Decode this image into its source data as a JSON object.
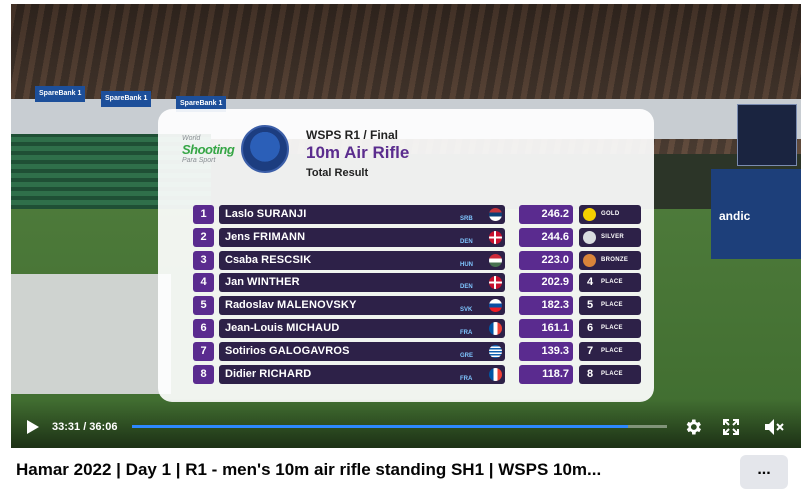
{
  "video": {
    "time_display": "33:31 / 36:06",
    "progress": 0.928,
    "accent_color": "#2d88ff"
  },
  "overlay": {
    "logo_line1": "World",
    "logo_line2": "Shooting",
    "logo_line3": "Para Sport",
    "title_line1": "WSPS R1 / Final",
    "title_line2": "10m Air Rifle",
    "title_line3": "Total Result",
    "results": [
      {
        "rank": "1",
        "first": "Laslo",
        "last": "SURANJI",
        "noc": "SRB",
        "score": "246.2",
        "place_text": "GOLD",
        "medal": "gold"
      },
      {
        "rank": "2",
        "first": "Jens",
        "last": "FRIMANN",
        "noc": "DEN",
        "score": "244.6",
        "place_text": "SILVER",
        "medal": "silver"
      },
      {
        "rank": "3",
        "first": "Csaba",
        "last": "RESCSIK",
        "noc": "HUN",
        "score": "223.0",
        "place_text": "BRONZE",
        "medal": "bronze"
      },
      {
        "rank": "4",
        "first": "Jan",
        "last": "WINTHER",
        "noc": "DEN",
        "score": "202.9",
        "place_num": "4",
        "place_text": "PLACE"
      },
      {
        "rank": "5",
        "first": "Radoslav",
        "last": "MALENOVSKY",
        "noc": "SVK",
        "score": "182.3",
        "place_num": "5",
        "place_text": "PLACE"
      },
      {
        "rank": "6",
        "first": "Jean-Louis",
        "last": "MICHAUD",
        "noc": "FRA",
        "score": "161.1",
        "place_num": "6",
        "place_text": "PLACE"
      },
      {
        "rank": "7",
        "first": "Sotirios",
        "last": "GALOGAVROS",
        "noc": "GRE",
        "score": "139.3",
        "place_num": "7",
        "place_text": "PLACE"
      },
      {
        "rank": "8",
        "first": "Didier",
        "last": "RICHARD",
        "noc": "FRA",
        "score": "118.7",
        "place_num": "8",
        "place_text": "PLACE"
      }
    ]
  },
  "arena": {
    "banner_1": "SpareBank 1",
    "banner_2": "SpareBank 1",
    "banner_3": "SpareBank 1",
    "board_text": "andic"
  },
  "post": {
    "title": "Hamar 2022 | Day 1 | R1 - men's 10m air rifle standing SH1 | WSPS 10m...",
    "more_label": "..."
  },
  "icons": {
    "play": "play-icon",
    "settings": "gear-icon",
    "fullscreen": "expand-icon",
    "volume": "mute-icon",
    "more": "more-icon"
  }
}
